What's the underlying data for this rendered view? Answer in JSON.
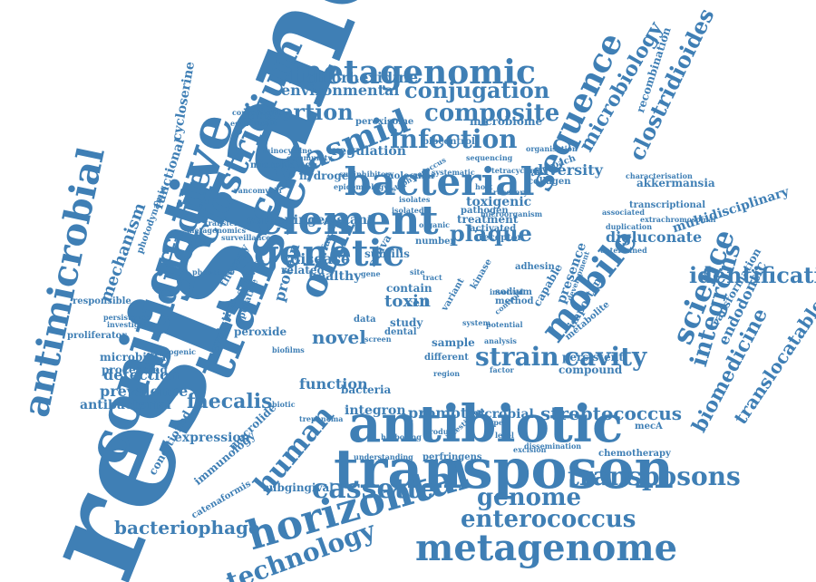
{
  "cloud": {
    "color": "#3f7fb5",
    "words": [
      {
        "text": "resistance"
      },
      {
        "text": "conjugative"
      },
      {
        "text": "antimicrobial"
      },
      {
        "text": "transfer"
      },
      {
        "text": "difficile"
      },
      {
        "text": "clostridium"
      },
      {
        "text": "metagenomic"
      },
      {
        "text": "plasmid"
      },
      {
        "text": "conjugation"
      },
      {
        "text": "composite"
      },
      {
        "text": "insertion"
      },
      {
        "text": "environmental"
      },
      {
        "text": "chlorhexidine"
      },
      {
        "text": "infection"
      },
      {
        "text": "bacterial"
      },
      {
        "text": "element"
      },
      {
        "text": "sequence"
      },
      {
        "text": "microbiology"
      },
      {
        "text": "clostridioides"
      },
      {
        "text": "genetic"
      },
      {
        "text": "oral"
      },
      {
        "text": "mobile"
      },
      {
        "text": "science"
      },
      {
        "text": "integrons"
      },
      {
        "text": "identification"
      },
      {
        "text": "antibiotic"
      },
      {
        "text": "transposon"
      },
      {
        "text": "horizontal"
      },
      {
        "text": "metagenome"
      },
      {
        "text": "human"
      },
      {
        "text": "cassette"
      },
      {
        "text": "genome"
      },
      {
        "text": "enterococcus"
      },
      {
        "text": "transposons"
      },
      {
        "text": "bacteriophage"
      },
      {
        "text": "technology"
      },
      {
        "text": "strain"
      },
      {
        "text": "cavity"
      },
      {
        "text": "streptococcus"
      },
      {
        "text": "faecalis"
      },
      {
        "text": "detection"
      },
      {
        "text": "prevalence"
      },
      {
        "text": "antibacterial"
      },
      {
        "text": "microbiota"
      },
      {
        "text": "function"
      },
      {
        "text": "integron"
      },
      {
        "text": "promoter"
      },
      {
        "text": "microbial"
      },
      {
        "text": "biomedicine"
      },
      {
        "text": "translocatable"
      },
      {
        "text": "endodontic"
      },
      {
        "text": "mechanism"
      },
      {
        "text": "functional"
      },
      {
        "text": "cycloserine"
      },
      {
        "text": "akkermansia"
      },
      {
        "text": "digluconate"
      },
      {
        "text": "multidisciplinary"
      },
      {
        "text": "recombination"
      },
      {
        "text": "diversity"
      },
      {
        "text": "toxigenic"
      },
      {
        "text": "regulation"
      },
      {
        "text": "hydrogen"
      },
      {
        "text": "peroxide"
      },
      {
        "text": "novel"
      },
      {
        "text": "toxin"
      },
      {
        "text": "disease"
      },
      {
        "text": "healthy"
      },
      {
        "text": "protein"
      },
      {
        "text": "screening"
      },
      {
        "text": "resistant"
      },
      {
        "text": "plaque"
      },
      {
        "text": "expression"
      },
      {
        "text": "perfringens"
      },
      {
        "text": "subgingival"
      },
      {
        "text": "immunology"
      },
      {
        "text": "macrolide"
      },
      {
        "text": "conditioned"
      },
      {
        "text": "processing"
      },
      {
        "text": "evolution"
      },
      {
        "text": "persistent"
      },
      {
        "text": "compound"
      },
      {
        "text": "microbiomes"
      },
      {
        "text": "peroxisome"
      },
      {
        "text": "microbiome"
      },
      {
        "text": "biocontrol"
      },
      {
        "text": "transformation"
      },
      {
        "text": "minocycline"
      },
      {
        "text": "escherichia"
      },
      {
        "text": "concentration"
      },
      {
        "text": "proliferator"
      },
      {
        "text": "responsible"
      },
      {
        "text": "persistence"
      },
      {
        "text": "mecA"
      },
      {
        "text": "chemotherapy"
      },
      {
        "text": "understanding"
      },
      {
        "text": "transcriptional"
      },
      {
        "text": "extrachromosomal"
      },
      {
        "text": "catenaformis"
      },
      {
        "text": "pathogen"
      },
      {
        "text": "treatment"
      },
      {
        "text": "activated"
      },
      {
        "text": "receptor"
      },
      {
        "text": "collagen"
      },
      {
        "text": "approach"
      },
      {
        "text": "molecular"
      },
      {
        "text": "subinhibitory"
      },
      {
        "text": "bacteria"
      },
      {
        "text": "sample"
      },
      {
        "text": "different"
      },
      {
        "text": "study"
      },
      {
        "text": "dental"
      },
      {
        "text": "metabolite"
      },
      {
        "text": "important"
      },
      {
        "text": "presence"
      },
      {
        "text": "capable"
      },
      {
        "text": "organisation"
      },
      {
        "text": "characterisation"
      },
      {
        "text": "subtilis"
      },
      {
        "text": "saliva"
      },
      {
        "text": "adhesin"
      },
      {
        "text": "therapy"
      },
      {
        "text": "activity"
      },
      {
        "text": "related"
      },
      {
        "text": "family"
      },
      {
        "text": "putative"
      },
      {
        "text": "number"
      },
      {
        "text": "contain"
      },
      {
        "text": "cell"
      },
      {
        "text": "organic"
      },
      {
        "text": "biofilms"
      },
      {
        "text": "variant"
      },
      {
        "text": "kinase"
      },
      {
        "text": "method"
      },
      {
        "text": "sodium"
      },
      {
        "text": "dissemination"
      },
      {
        "text": "data"
      },
      {
        "text": "photodynamic"
      },
      {
        "text": "metagenomics"
      },
      {
        "text": "phenotype"
      },
      {
        "text": "investigation"
      },
      {
        "text": "pathogenic"
      },
      {
        "text": "isolated"
      },
      {
        "text": "development"
      },
      {
        "text": "excision"
      },
      {
        "text": "treponema"
      },
      {
        "text": "determined"
      },
      {
        "text": "harboring"
      },
      {
        "text": "recovery"
      },
      {
        "text": "screen"
      },
      {
        "text": "biotic"
      },
      {
        "text": "associated"
      },
      {
        "text": "duplication"
      },
      {
        "text": "systematic"
      },
      {
        "text": "involved"
      },
      {
        "text": "staphylococcus"
      },
      {
        "text": "isolates"
      },
      {
        "text": "epidemiology"
      },
      {
        "text": "tetracycline"
      },
      {
        "text": "vancomycin"
      },
      {
        "text": "microorganism"
      },
      {
        "text": "host"
      },
      {
        "text": "tract"
      },
      {
        "text": "site"
      },
      {
        "text": "gene"
      },
      {
        "text": "system"
      },
      {
        "text": "analysis"
      },
      {
        "text": "control"
      },
      {
        "text": "region"
      },
      {
        "text": "factor"
      },
      {
        "text": "type"
      },
      {
        "text": "level"
      },
      {
        "text": "intestinal"
      },
      {
        "text": "potential"
      },
      {
        "text": "product"
      },
      {
        "text": "sequencing"
      },
      {
        "text": "community"
      },
      {
        "text": "surveillance"
      },
      {
        "text": "transfer"
      }
    ]
  }
}
